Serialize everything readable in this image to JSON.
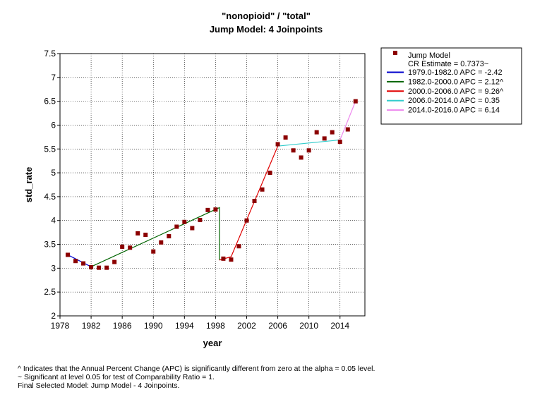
{
  "chart_data": {
    "type": "scatter",
    "title": "\"nonopioid\" / \"total\"",
    "subtitle": "Jump Model: 4 Joinpoints",
    "xlabel": "year",
    "ylabel": "std_rate",
    "xlim": [
      1978,
      2017.2
    ],
    "ylim": [
      2,
      7.5
    ],
    "xticks": [
      1978,
      1982,
      1986,
      1990,
      1994,
      1998,
      2002,
      2006,
      2010,
      2014
    ],
    "yticks": [
      2,
      2.5,
      3,
      3.5,
      4,
      4.5,
      5,
      5.5,
      6,
      6.5,
      7,
      7.5
    ],
    "ytick_labels": [
      "2",
      "2.5",
      "3",
      "3.5",
      "4",
      "4.5",
      "5",
      "5.5",
      "6",
      "6.5",
      "7",
      "7.5"
    ],
    "grid": true,
    "legend_position": "right",
    "observed": {
      "name": "Jump Model",
      "color": "#8b0000",
      "x": [
        1979,
        1980,
        1981,
        1982,
        1983,
        1984,
        1985,
        1986,
        1987,
        1988,
        1989,
        1990,
        1991,
        1992,
        1993,
        1994,
        1995,
        1996,
        1997,
        1998,
        1999,
        2000,
        2001,
        2002,
        2003,
        2004,
        2005,
        2006,
        2007,
        2008,
        2009,
        2010,
        2011,
        2012,
        2013,
        2014,
        2015,
        2016
      ],
      "y": [
        3.28,
        3.15,
        3.1,
        3.02,
        3.01,
        3.01,
        3.13,
        3.45,
        3.43,
        3.73,
        3.7,
        3.35,
        3.54,
        3.67,
        3.87,
        3.97,
        3.84,
        4.01,
        4.22,
        4.23,
        3.2,
        3.18,
        3.46,
        4.0,
        4.41,
        4.65,
        5.0,
        5.6,
        5.74,
        5.47,
        5.32,
        5.47,
        5.85,
        5.72,
        5.85,
        5.65,
        5.91,
        6.5
      ]
    },
    "series": [
      {
        "name": "1979.0-1982.0 APC  = -2.42",
        "color": "#0000cc",
        "x": [
          1979,
          1982
        ],
        "y": [
          3.28,
          3.03
        ]
      },
      {
        "name": "1982.0-2000.0 APC  = 2.12^",
        "color": "#006400",
        "x": [
          1982,
          1998.5,
          1998.5
        ],
        "y": [
          3.03,
          4.27,
          3.17
        ]
      },
      {
        "name": "2000.0-2006.0 APC  = 9.26^",
        "color": "#e00000",
        "x": [
          1998.5,
          2000,
          2006
        ],
        "y": [
          3.17,
          3.24,
          5.56
        ]
      },
      {
        "name": "2006.0-2014.0 APC  = 0.35",
        "color": "#33cccc",
        "x": [
          2006,
          2014
        ],
        "y": [
          5.56,
          5.69
        ]
      },
      {
        "name": "2014.0-2016.0 APC  = 6.14",
        "color": "#ee88ee",
        "x": [
          2014,
          2016
        ],
        "y": [
          5.69,
          6.5
        ]
      }
    ],
    "cr_estimate": "CR Estimate = 0.7373~"
  },
  "footnotes": [
    "^ Indicates that the Annual Percent Change (APC) is significantly different from zero at the alpha = 0.05 level.",
    "~ Significant at level 0.05 for test of Comparability Ratio = 1.",
    "Final Selected Model: Jump Model - 4 Joinpoints."
  ]
}
